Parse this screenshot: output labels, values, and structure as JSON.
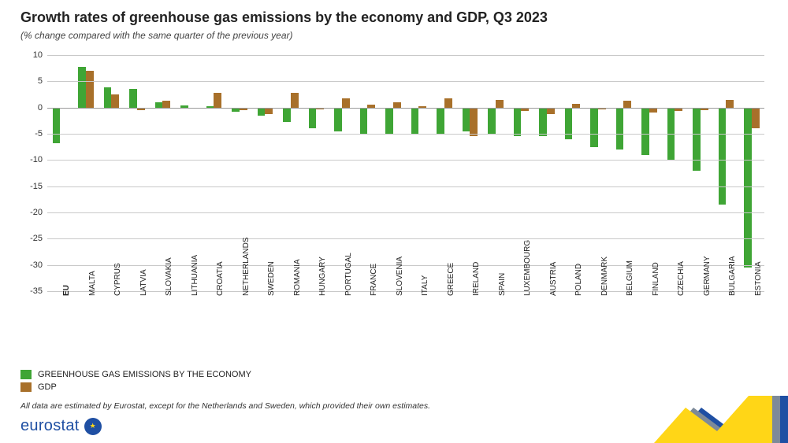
{
  "chart": {
    "type": "bar",
    "title": "Growth rates of greenhouse gas emissions by the economy and GDP, Q3 2023",
    "title_fontsize": 18,
    "subtitle": "(% change compared with the same quarter of the previous year)",
    "subtitle_fontsize": 12,
    "background_color": "#ffffff",
    "grid_color": "#c9c9c9",
    "zero_line_color": "#9a9a9a",
    "ylim": [
      -35,
      10
    ],
    "ytick_step": 5,
    "label_fontsize": 10,
    "bar_group_width": 0.6,
    "series": [
      {
        "key": "ghg",
        "label": "GREENHOUSE GAS EMISSIONS BY THE ECONOMY",
        "color": "#3fa535"
      },
      {
        "key": "gdp",
        "label": "GDP",
        "color": "#a8702a"
      }
    ],
    "categories": [
      {
        "label": "EU",
        "bold": true,
        "ghg": -6.8,
        "gdp": -0.2
      },
      {
        "label": "MALTA",
        "ghg": 7.8,
        "gdp": 7.0
      },
      {
        "label": "CYPRUS",
        "ghg": 3.8,
        "gdp": 2.5
      },
      {
        "label": "LATVIA",
        "ghg": 3.5,
        "gdp": -0.5
      },
      {
        "label": "SLOVAKIA",
        "ghg": 1.0,
        "gdp": 1.3
      },
      {
        "label": "LITHUANIA",
        "ghg": 0.4,
        "gdp": -0.2
      },
      {
        "label": "CROATIA",
        "ghg": 0.2,
        "gdp": 2.8
      },
      {
        "label": "NETHERLANDS",
        "ghg": -0.8,
        "gdp": -0.5
      },
      {
        "label": "SWEDEN",
        "ghg": -1.5,
        "gdp": -1.3
      },
      {
        "label": "ROMANIA",
        "ghg": -2.8,
        "gdp": 2.8
      },
      {
        "label": "HUNGARY",
        "ghg": -4.0,
        "gdp": -0.3
      },
      {
        "label": "PORTUGAL",
        "ghg": -4.5,
        "gdp": 1.8
      },
      {
        "label": "FRANCE",
        "ghg": -5.0,
        "gdp": 0.5
      },
      {
        "label": "SLOVENIA",
        "ghg": -5.0,
        "gdp": 1.0
      },
      {
        "label": "ITALY",
        "ghg": -5.0,
        "gdp": 0.2
      },
      {
        "label": "GREECE",
        "ghg": -5.0,
        "gdp": 1.8
      },
      {
        "label": "IRELAND",
        "ghg": -4.5,
        "gdp": -5.5
      },
      {
        "label": "SPAIN",
        "ghg": -5.0,
        "gdp": 1.5
      },
      {
        "label": "LUXEMBOURG",
        "ghg": -5.5,
        "gdp": -0.7
      },
      {
        "label": "AUSTRIA",
        "ghg": -5.5,
        "gdp": -1.3
      },
      {
        "label": "POLAND",
        "ghg": -6.0,
        "gdp": 0.7
      },
      {
        "label": "DENMARK",
        "ghg": -7.5,
        "gdp": -0.3
      },
      {
        "label": "BELGIUM",
        "ghg": -8.0,
        "gdp": 1.3
      },
      {
        "label": "FINLAND",
        "ghg": -9.0,
        "gdp": -1.0
      },
      {
        "label": "CZECHIA",
        "ghg": -10.0,
        "gdp": -0.6
      },
      {
        "label": "GERMANY",
        "ghg": -12.0,
        "gdp": -0.5
      },
      {
        "label": "BULGARIA",
        "ghg": -18.5,
        "gdp": 1.5
      },
      {
        "label": "ESTONIA",
        "ghg": -30.5,
        "gdp": -4.0
      }
    ]
  },
  "footnote": "All data are estimated by Eurostat, except for the Netherlands and Sweden, which provided their own estimates.",
  "logo": {
    "text": "eurostat",
    "flag_bg": "#1f4fa3",
    "flag_star": "#ffd617"
  },
  "deco_colors": {
    "yellow": "#ffd617",
    "grey": "#7d8a99",
    "blue": "#1f4fa3"
  }
}
